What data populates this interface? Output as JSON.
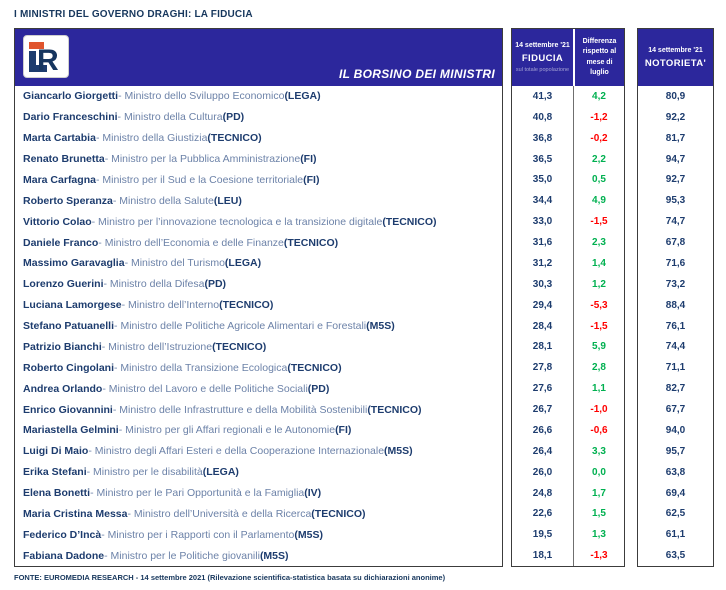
{
  "page": {
    "title": "I MINISTRI DEL GOVERNO DRAGHI: LA FIDUCIA",
    "footer": "FONTE: EUROMEDIA RESEARCH - 14 settembre 2021 (Rilevazione scientifica-statistica basata su dichiarazioni anonime)"
  },
  "header": {
    "banner_label": "IL BORSINO DEI MINISTRI",
    "logo_text": "ER",
    "fiducia": {
      "date": "14 settembre '21",
      "label": "FIDUCIA",
      "sublabel": "sul totale popolazione"
    },
    "differenza": {
      "label": "Differenza rispetto al mese di luglio"
    },
    "notorieta": {
      "date": "14 settembre '21",
      "label": "NOTORIETA'"
    }
  },
  "colors": {
    "header_blue": "#2c279c",
    "navy_text": "#1d3c6e",
    "role_text": "#6c82a8",
    "positive_green": "#00b050",
    "negative_red": "#ff0000",
    "logo_orange": "#e0552e"
  },
  "table": {
    "name_separator": " - "
  },
  "chart_data": {
    "type": "table",
    "title": "I MINISTRI DEL GOVERNO DRAGHI: LA FIDUCIA",
    "columns": [
      "Ministro",
      "FIDUCIA 14 settembre '21 (sul totale popolazione)",
      "Differenza rispetto al mese di luglio",
      "NOTORIETA' 14 settembre '21"
    ],
    "rows": [
      {
        "name": "Giancarlo Giorgetti",
        "role": "Ministro dello Sviluppo Economico",
        "party": "(LEGA)",
        "fiducia": "41,3",
        "differenza": "4,2",
        "direction": "up",
        "notorieta": "80,9"
      },
      {
        "name": "Dario Franceschini",
        "role": "Ministro della Cultura",
        "party": "(PD)",
        "fiducia": "40,8",
        "differenza": "-1,2",
        "direction": "down",
        "notorieta": "92,2"
      },
      {
        "name": "Marta Cartabia",
        "role": "Ministro della Giustizia",
        "party": "(TECNICO)",
        "fiducia": "36,8",
        "differenza": "-0,2",
        "direction": "down",
        "notorieta": "81,7"
      },
      {
        "name": "Renato Brunetta",
        "role": "Ministro per la Pubblica Amministrazione",
        "party": "(FI)",
        "fiducia": "36,5",
        "differenza": "2,2",
        "direction": "up",
        "notorieta": "94,7"
      },
      {
        "name": "Mara Carfagna",
        "role": "Ministro per il Sud e la Coesione territoriale",
        "party": "(FI)",
        "fiducia": "35,0",
        "differenza": "0,5",
        "direction": "up",
        "notorieta": "92,7"
      },
      {
        "name": "Roberto Speranza",
        "role": "Ministro della Salute",
        "party": "(LEU)",
        "fiducia": "34,4",
        "differenza": "4,9",
        "direction": "up",
        "notorieta": "95,3"
      },
      {
        "name": "Vittorio Colao",
        "role": "Ministro per l’innovazione tecnologica e la transizione digitale",
        "party": "(TECNICO)",
        "fiducia": "33,0",
        "differenza": "-1,5",
        "direction": "down",
        "notorieta": "74,7"
      },
      {
        "name": "Daniele Franco",
        "role": "Ministro dell’Economia e delle Finanze",
        "party": "(TECNICO)",
        "fiducia": "31,6",
        "differenza": "2,3",
        "direction": "up",
        "notorieta": "67,8"
      },
      {
        "name": "Massimo Garavaglia",
        "role": "Ministro del Turismo",
        "party": "(LEGA)",
        "fiducia": "31,2",
        "differenza": "1,4",
        "direction": "up",
        "notorieta": "71,6"
      },
      {
        "name": "Lorenzo Guerini",
        "role": "Ministro della Difesa",
        "party": "(PD)",
        "fiducia": "30,3",
        "differenza": "1,2",
        "direction": "up",
        "notorieta": "73,2"
      },
      {
        "name": "Luciana Lamorgese",
        "role": "Ministro dell’Interno",
        "party": "(TECNICO)",
        "fiducia": "29,4",
        "differenza": "-5,3",
        "direction": "down",
        "notorieta": "88,4"
      },
      {
        "name": "Stefano Patuanelli",
        "role": "Ministro delle Politiche Agricole Alimentari e Forestali",
        "party": "(M5S)",
        "fiducia": "28,4",
        "differenza": "-1,5",
        "direction": "down",
        "notorieta": "76,1"
      },
      {
        "name": "Patrizio Bianchi",
        "role": "Ministro dell’Istruzione",
        "party": "(TECNICO)",
        "fiducia": "28,1",
        "differenza": "5,9",
        "direction": "up",
        "notorieta": "74,4"
      },
      {
        "name": "Roberto Cingolani",
        "role": "Ministro della Transizione Ecologica",
        "party": "(TECNICO)",
        "fiducia": "27,8",
        "differenza": "2,8",
        "direction": "up",
        "notorieta": "71,1"
      },
      {
        "name": "Andrea Orlando",
        "role": "Ministro del Lavoro e delle Politiche Sociali",
        "party": "(PD)",
        "fiducia": "27,6",
        "differenza": "1,1",
        "direction": "up",
        "notorieta": "82,7"
      },
      {
        "name": "Enrico Giovannini",
        "role": "Ministro delle Infrastrutture e della Mobilità Sostenibili",
        "party": "(TECNICO)",
        "fiducia": "26,7",
        "differenza": "-1,0",
        "direction": "down",
        "notorieta": "67,7"
      },
      {
        "name": "Mariastella Gelmini",
        "role": "Ministro per gli Affari regionali e le Autonomie",
        "party": "(FI)",
        "fiducia": "26,6",
        "differenza": "-0,6",
        "direction": "down",
        "notorieta": "94,0"
      },
      {
        "name": "Luigi Di Maio",
        "role": "Ministro degli Affari Esteri e della Cooperazione Internazionale",
        "party": "(M5S)",
        "fiducia": "26,4",
        "differenza": "3,3",
        "direction": "up",
        "notorieta": "95,7"
      },
      {
        "name": "Erika Stefani",
        "role": "Ministro per le disabilità",
        "party": "(LEGA)",
        "fiducia": "26,0",
        "differenza": "0,0",
        "direction": "up",
        "notorieta": "63,8"
      },
      {
        "name": "Elena Bonetti",
        "role": "Ministro per le Pari Opportunità e la Famiglia",
        "party": "(IV)",
        "fiducia": "24,8",
        "differenza": "1,7",
        "direction": "up",
        "notorieta": "69,4"
      },
      {
        "name": "Maria Cristina Messa",
        "role": "Ministro dell’Università e della Ricerca",
        "party": "(TECNICO)",
        "fiducia": "22,6",
        "differenza": "1,5",
        "direction": "up",
        "notorieta": "62,5"
      },
      {
        "name": "Federico D’Incà",
        "role": "Ministro per i Rapporti con il Parlamento",
        "party": "(M5S)",
        "fiducia": "19,5",
        "differenza": "1,3",
        "direction": "up",
        "notorieta": "61,1"
      },
      {
        "name": "Fabiana Dadone",
        "role": "Ministro per le Politiche giovanili",
        "party": "(M5S)",
        "fiducia": "18,1",
        "differenza": "-1,3",
        "direction": "down",
        "notorieta": "63,5"
      }
    ]
  }
}
